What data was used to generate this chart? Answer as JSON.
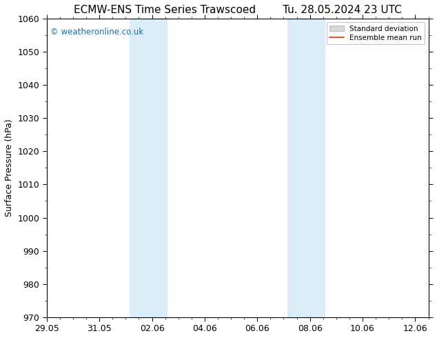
{
  "title_left": "ECMW-ENS Time Series Trawscoed",
  "title_right": "Tu. 28.05.2024 23 UTC",
  "ylabel": "Surface Pressure (hPa)",
  "ylim": [
    970,
    1060
  ],
  "yticks": [
    970,
    980,
    990,
    1000,
    1010,
    1020,
    1030,
    1040,
    1050,
    1060
  ],
  "xtick_labels": [
    "29.05",
    "31.05",
    "02.06",
    "04.06",
    "06.06",
    "08.06",
    "10.06",
    "12.06"
  ],
  "xtick_positions": [
    0,
    2,
    4,
    6,
    8,
    10,
    12,
    14
  ],
  "xlim": [
    0,
    14.5
  ],
  "shaded_regions": [
    {
      "x_start": 3.2,
      "x_end": 4.2
    },
    {
      "x_start": 3.7,
      "x_end": 4.7
    },
    {
      "x_start": 9.2,
      "x_end": 10.0
    },
    {
      "x_start": 9.8,
      "x_end": 10.6
    }
  ],
  "shaded_color": "#daedf8",
  "watermark_text": "© weatheronline.co.uk",
  "watermark_color": "#1a6fad",
  "legend_items": [
    {
      "label": "Standard deviation",
      "color": "#cccccc",
      "type": "fill"
    },
    {
      "label": "Ensemble mean run",
      "color": "#ff2200",
      "type": "line"
    }
  ],
  "bg_color": "#ffffff",
  "spine_color": "#000000",
  "title_fontsize": 11,
  "axis_label_fontsize": 9,
  "tick_fontsize": 9
}
